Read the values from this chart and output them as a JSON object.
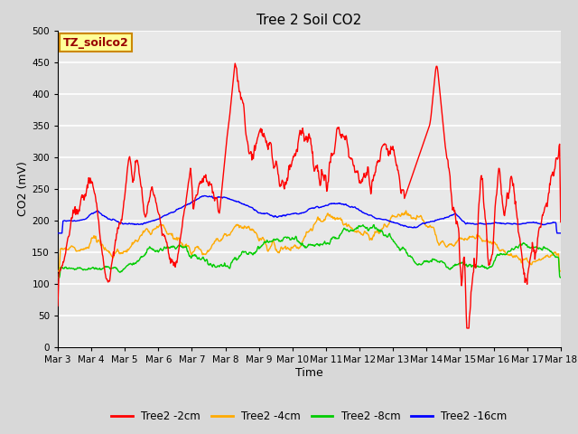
{
  "title": "Tree 2 Soil CO2",
  "xlabel": "Time",
  "ylabel": "CO2 (mV)",
  "ylim": [
    0,
    500
  ],
  "yticks": [
    0,
    50,
    100,
    150,
    200,
    250,
    300,
    350,
    400,
    450,
    500
  ],
  "watermark_text": "TZ_soilco2",
  "line_colors": {
    "2cm": "#ff0000",
    "4cm": "#ffaa00",
    "8cm": "#00cc00",
    "16cm": "#0000ff"
  },
  "line_labels": {
    "2cm": "Tree2 -2cm",
    "4cm": "Tree2 -4cm",
    "8cm": "Tree2 -8cm",
    "16cm": "Tree2 -16cm"
  },
  "x_tick_labels": [
    "Mar 3",
    "Mar 4",
    "Mar 5",
    "Mar 6",
    "Mar 7",
    "Mar 8",
    "Mar 9",
    "Mar 10",
    "Mar 11",
    "Mar 12",
    "Mar 13",
    "Mar 14",
    "Mar 15",
    "Mar 16",
    "Mar 17",
    "Mar 18"
  ],
  "fig_bg_color": "#d8d8d8",
  "plot_bg_color": "#e8e8e8",
  "title_fontsize": 11,
  "axis_label_fontsize": 9,
  "tick_fontsize": 7.5,
  "legend_fontsize": 8.5,
  "watermark_fontsize": 9,
  "n_points": 960,
  "legend_bg": "#ffffff"
}
